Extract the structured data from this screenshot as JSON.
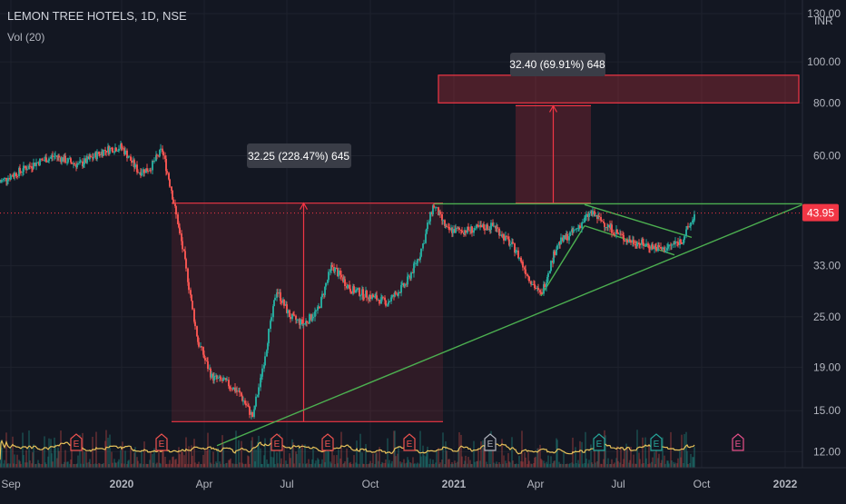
{
  "header": {
    "symbol": "LEMON TREE HOTELS, 1D, NSE",
    "volume_indicator": "Vol (20)"
  },
  "price_scale": {
    "currency": "INR",
    "ticks": [
      "130.00",
      "100.00",
      "80.00",
      "60.00",
      "33.00",
      "25.00",
      "19.00",
      "15.00",
      "12.00"
    ],
    "last_price_label": "43.95"
  },
  "time_axis": {
    "ticks": [
      "Sep",
      "2020",
      "Apr",
      "Jul",
      "Oct",
      "2021",
      "Apr",
      "Jul",
      "Oct",
      "2022"
    ]
  },
  "measurements": [
    {
      "label": "32.25 (228.47%) 645"
    },
    {
      "label": "32.40 (69.91%) 648"
    }
  ],
  "event_markers": [
    "E",
    "E",
    "E",
    "E",
    "E",
    "E",
    "E",
    "E",
    "E"
  ],
  "colors": {
    "background": "#131722",
    "up": "#26a69a",
    "down": "#ef5350",
    "trendline": "#4caf50",
    "measure": "#f23645",
    "volume_ma": "#e8c25a",
    "axis_text": "#b2b5be"
  },
  "chart_data": {
    "type": "candlestick",
    "title": "LEMON TREE HOTELS, 1D, NSE",
    "y_scale": "log",
    "ylim": [
      11,
      140
    ],
    "xlim": [
      "2019-08-20",
      "2022-01-20"
    ],
    "series": [
      {
        "name": "price_path",
        "points": [
          [
            "2019-08-20",
            52
          ],
          [
            "2019-09-10",
            55
          ],
          [
            "2019-10-01",
            58
          ],
          [
            "2019-10-20",
            60
          ],
          [
            "2019-11-15",
            57
          ],
          [
            "2019-12-15",
            62
          ],
          [
            "2020-01-01",
            63
          ],
          [
            "2020-01-20",
            55
          ],
          [
            "2020-02-01",
            56
          ],
          [
            "2020-02-15",
            62
          ],
          [
            "2020-02-25",
            50
          ],
          [
            "2020-03-10",
            35
          ],
          [
            "2020-03-25",
            22
          ],
          [
            "2020-04-10",
            18
          ],
          [
            "2020-04-25",
            17.5
          ],
          [
            "2020-05-10",
            16.5
          ],
          [
            "2020-05-25",
            14.5
          ],
          [
            "2020-06-05",
            19
          ],
          [
            "2020-06-20",
            29
          ],
          [
            "2020-07-05",
            25
          ],
          [
            "2020-07-20",
            24
          ],
          [
            "2020-08-05",
            26
          ],
          [
            "2020-08-20",
            33
          ],
          [
            "2020-09-10",
            29
          ],
          [
            "2020-10-01",
            28
          ],
          [
            "2020-10-20",
            27
          ],
          [
            "2020-11-10",
            30
          ],
          [
            "2020-11-25",
            35
          ],
          [
            "2020-12-10",
            46
          ],
          [
            "2020-12-25",
            40
          ],
          [
            "2021-01-15",
            40
          ],
          [
            "2021-02-15",
            41
          ],
          [
            "2021-03-10",
            36
          ],
          [
            "2021-03-25",
            31
          ],
          [
            "2021-04-07",
            28
          ],
          [
            "2021-04-25",
            37
          ],
          [
            "2021-05-15",
            40
          ],
          [
            "2021-06-01",
            44
          ],
          [
            "2021-06-20",
            41
          ],
          [
            "2021-07-10",
            38
          ],
          [
            "2021-08-01",
            37
          ],
          [
            "2021-08-20",
            36
          ],
          [
            "2021-09-10",
            38
          ],
          [
            "2021-09-25",
            43.95
          ]
        ]
      }
    ],
    "last_price": 43.95,
    "annotations": [
      {
        "type": "measure",
        "from_date": "2020-02-25",
        "to_date": "2020-12-20",
        "from_price": 14.13,
        "to_price": 46.38,
        "change": 32.25,
        "percent": "228.47%",
        "bars": 645
      },
      {
        "type": "measure",
        "from_date": "2021-03-10",
        "to_date": "2021-06-01",
        "from_price": 46.38,
        "to_price": 78.78,
        "change": 32.4,
        "percent": "69.91%",
        "bars": 648
      },
      {
        "type": "target_zone",
        "from_date": "2020-12-15",
        "to_date": "2022-01-20",
        "low": 80,
        "high": 93
      },
      {
        "type": "trendline",
        "name": "rising support",
        "from": [
          "2020-04-15",
          12.4
        ],
        "to": [
          "2022-01-20",
          46
        ]
      },
      {
        "type": "trendline",
        "name": "resistance",
        "from": [
          "2020-12-10",
          46.2
        ],
        "to": [
          "2022-01-20",
          46.2
        ]
      },
      {
        "type": "trendline",
        "name": "channel upper",
        "from": [
          "2021-05-25",
          46
        ],
        "to": [
          "2021-09-20",
          38.5
        ]
      },
      {
        "type": "trendline",
        "name": "channel lower",
        "from": [
          "2021-05-25",
          41
        ],
        "to": [
          "2021-09-01",
          35
        ]
      },
      {
        "type": "trendline",
        "name": "breakout leg",
        "from": [
          "2021-04-07",
          28
        ],
        "to": [
          "2021-05-25",
          41
        ]
      }
    ],
    "volume": {
      "ma_period": 20
    }
  }
}
